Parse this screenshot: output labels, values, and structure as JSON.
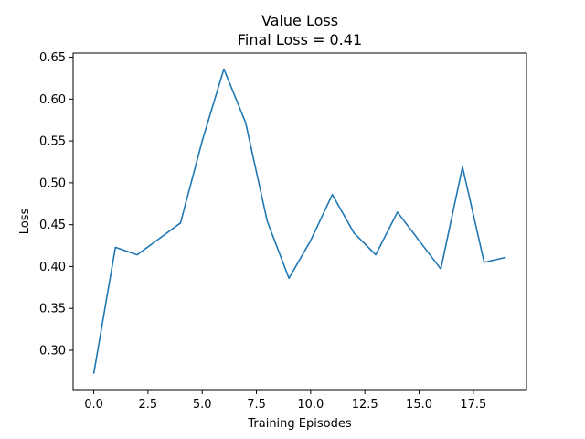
{
  "chart_data": {
    "type": "line",
    "title": "Value Loss",
    "subtitle": "Final Loss = 0.41",
    "xlabel": "Training Episodes",
    "ylabel": "Loss",
    "xlim": [
      -0.95,
      19.95
    ],
    "ylim": [
      0.253,
      0.655
    ],
    "xticks": [
      0.0,
      2.5,
      5.0,
      7.5,
      10.0,
      12.5,
      15.0,
      17.5
    ],
    "xtick_labels": [
      "0.0",
      "2.5",
      "5.0",
      "7.5",
      "10.0",
      "12.5",
      "15.0",
      "17.5"
    ],
    "yticks": [
      0.3,
      0.35,
      0.4,
      0.45,
      0.5,
      0.55,
      0.6,
      0.65
    ],
    "ytick_labels": [
      "0.30",
      "0.35",
      "0.40",
      "0.45",
      "0.50",
      "0.55",
      "0.60",
      "0.65"
    ],
    "grid": false,
    "series": [
      {
        "color": "#1f77b4",
        "x": [
          0,
          1,
          2,
          3,
          4,
          5,
          6,
          7,
          8,
          9,
          10,
          11,
          12,
          13,
          14,
          15,
          16,
          17,
          18,
          19
        ],
        "y": [
          0.272,
          0.423,
          0.414,
          0.433,
          0.452,
          0.55,
          0.636,
          0.572,
          0.454,
          0.386,
          0.431,
          0.486,
          0.44,
          0.414,
          0.465,
          0.431,
          0.397,
          0.519,
          0.405,
          0.411
        ]
      }
    ]
  }
}
